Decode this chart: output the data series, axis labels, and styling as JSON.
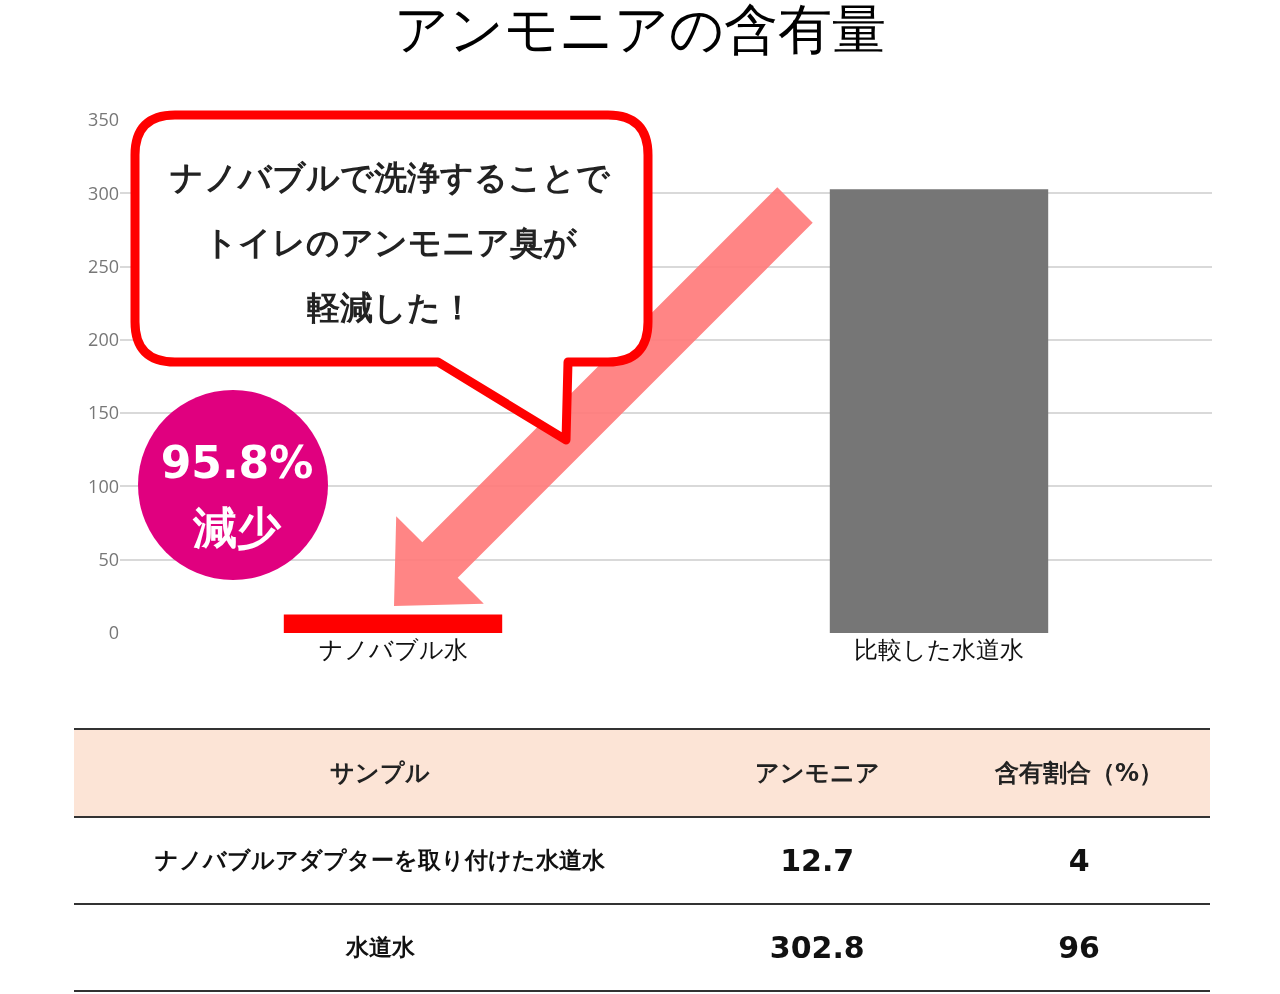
{
  "chart_data": [
    {
      "type": "bar",
      "title": "アンモニアの含有量",
      "categories": [
        "ナノバブル水",
        "比較した水道水"
      ],
      "values": [
        12.7,
        302.8
      ],
      "colors": [
        "#ff0000",
        "#767676"
      ],
      "ylim": [
        0,
        350
      ],
      "yticks": [
        0,
        50,
        100,
        150,
        200,
        250,
        300,
        350
      ],
      "grid": "y",
      "annotations": [
        "ナノバブルで洗浄することで",
        "トイレのアンモニア臭が",
        "軽減した！",
        "95.8%",
        "減少"
      ]
    },
    {
      "type": "other",
      "xlabel": "サンプル",
      "categories": [
        "ナノバブルアダプターを取り付けた水道水",
        "水道水"
      ],
      "series": [
        {
          "name": "アンモニア",
          "values": [
            12.7,
            302.8
          ]
        },
        {
          "name": "含有割合（%）",
          "values": [
            4,
            96
          ]
        }
      ],
      "data_labels": true
    }
  ]
}
